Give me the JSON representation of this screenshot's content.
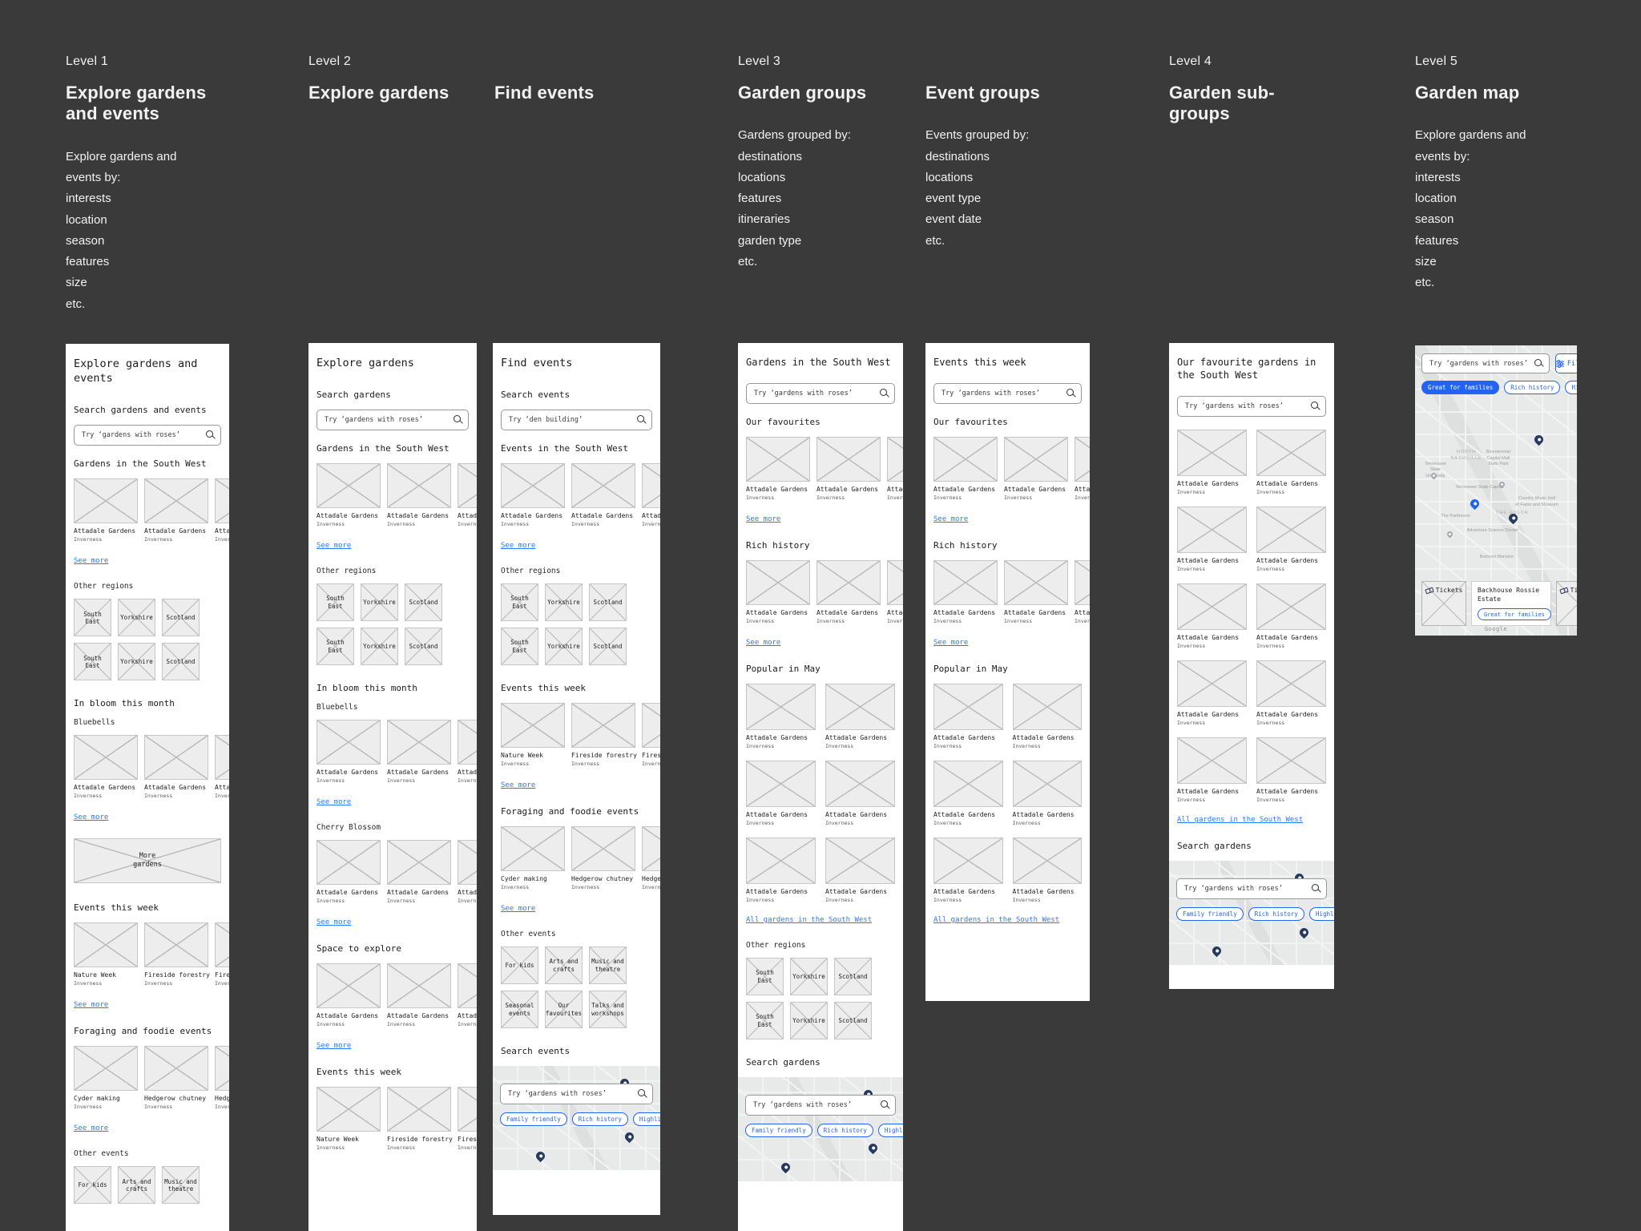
{
  "colors": {
    "background": "#3a3a3a",
    "link_blue": "#2979ff",
    "chip_blue": "#2264f0",
    "pin_navy": "#26395e",
    "pin_blue": "#2264f0"
  },
  "headers": [
    {
      "level": "Level 1",
      "title": "Explore gardens\nand events",
      "body": "Explore gardens and\nevents by:\ninterests\nlocation\nseason\nfeatures\nsize\netc."
    },
    {
      "level": "Level 2",
      "title": "Explore gardens",
      "body": ""
    },
    {
      "level": "",
      "title": "Find events",
      "body": ""
    },
    {
      "level": "Level 3",
      "title": "Garden groups",
      "body": "Gardens grouped by:\ndestinations\nlocations\nfeatures\nitineraries\ngarden type\netc."
    },
    {
      "level": "",
      "title": "Event groups",
      "body": "Events grouped by:\ndestinations\nlocations\nevent type\nevent date\netc."
    },
    {
      "level": "Level 4",
      "title": "Garden sub-\ngroups",
      "body": ""
    },
    {
      "level": "Level 5",
      "title": "Garden map",
      "body": "Explore gardens and\nevents by:\ninterests\nlocation\nseason\nfeatures\nsize\netc."
    }
  ],
  "screens": {
    "s1": {
      "name": "explore-gardens-and-events",
      "sections": [
        {
          "type": "title",
          "text": "Explore gardens and events"
        },
        {
          "type": "heading",
          "text": "Search gardens and events"
        },
        {
          "type": "search",
          "placeholder": "Try ‘gardens with roses’"
        },
        {
          "type": "heading",
          "text": "Gardens in the South West"
        },
        {
          "type": "cards",
          "items": [
            {
              "title": "Attadale Gardens",
              "subtitle": "Inverness"
            },
            {
              "title": "Attadale Gardens",
              "subtitle": "Inverness"
            },
            {
              "title": "Attadale Gardens",
              "subtitle": "Inverness"
            }
          ]
        },
        {
          "type": "link",
          "text": "See more"
        },
        {
          "type": "label",
          "text": "Other regions"
        },
        {
          "type": "tiles",
          "rows": [
            [
              "South East",
              "Yorkshire",
              "Scotland"
            ],
            [
              "South East",
              "Yorkshire",
              "Scotland"
            ]
          ]
        },
        {
          "type": "heading",
          "text": "In bloom this month"
        },
        {
          "type": "label",
          "text": "Bluebells"
        },
        {
          "type": "cards",
          "items": [
            {
              "title": "Attadale Gardens",
              "subtitle": "Inverness"
            },
            {
              "title": "Attadale Gardens",
              "subtitle": "Inverness"
            },
            {
              "title": "Attadale Gardens",
              "subtitle": "Inverness"
            }
          ]
        },
        {
          "type": "link",
          "text": "See more"
        },
        {
          "type": "banner",
          "text": "More\ngardens"
        },
        {
          "type": "heading",
          "text": "Events this week"
        },
        {
          "type": "cards",
          "items": [
            {
              "title": "Nature Week",
              "subtitle": "Inverness"
            },
            {
              "title": "Fireside forestry",
              "subtitle": "Inverness"
            },
            {
              "title": "Fireside forestry",
              "subtitle": "Inverness"
            }
          ]
        },
        {
          "type": "link",
          "text": "See more"
        },
        {
          "type": "heading",
          "text": "Foraging and foodie events"
        },
        {
          "type": "cards",
          "items": [
            {
              "title": "Cyder making",
              "subtitle": "Inverness"
            },
            {
              "title": "Hedgerow chutney",
              "subtitle": "Inverness"
            },
            {
              "title": "Hedgerow chutney",
              "subtitle": "Inverness"
            }
          ]
        },
        {
          "type": "link",
          "text": "See more"
        },
        {
          "type": "label",
          "text": "Other events"
        },
        {
          "type": "tiles",
          "rows": [
            [
              "For kids",
              "Arts and crafts",
              "Music and theatre"
            ]
          ]
        }
      ]
    },
    "s2": {
      "name": "explore-gardens",
      "sections": [
        {
          "type": "title",
          "text": "Explore gardens"
        },
        {
          "type": "heading",
          "text": "Search gardens"
        },
        {
          "type": "search",
          "placeholder": "Try ‘gardens with roses’"
        },
        {
          "type": "heading",
          "text": "Gardens in the South West"
        },
        {
          "type": "cards",
          "items": [
            {
              "title": "Attadale Gardens",
              "subtitle": "Inverness"
            },
            {
              "title": "Attadale Gardens",
              "subtitle": "Inverness"
            },
            {
              "title": "Attadale Gardens",
              "subtitle": "Inverness"
            }
          ]
        },
        {
          "type": "link",
          "text": "See more"
        },
        {
          "type": "label",
          "text": "Other regions"
        },
        {
          "type": "tiles",
          "rows": [
            [
              "South East",
              "Yorkshire",
              "Scotland"
            ],
            [
              "South East",
              "Yorkshire",
              "Scotland"
            ]
          ]
        },
        {
          "type": "heading",
          "text": "In bloom this month"
        },
        {
          "type": "label",
          "text": "Bluebells"
        },
        {
          "type": "cards",
          "items": [
            {
              "title": "Attadale Gardens",
              "subtitle": "Inverness"
            },
            {
              "title": "Attadale Gardens",
              "subtitle": "Inverness"
            },
            {
              "title": "Attadale Gardens",
              "subtitle": "Inverness"
            }
          ]
        },
        {
          "type": "link",
          "text": "See more"
        },
        {
          "type": "label",
          "text": "Cherry Blossom"
        },
        {
          "type": "cards",
          "items": [
            {
              "title": "Attadale Gardens",
              "subtitle": "Inverness"
            },
            {
              "title": "Attadale Gardens",
              "subtitle": "Inverness"
            },
            {
              "title": "Attadale Gardens",
              "subtitle": "Inverness"
            }
          ]
        },
        {
          "type": "link",
          "text": "See more"
        },
        {
          "type": "heading",
          "text": "Space to explore"
        },
        {
          "type": "cards",
          "items": [
            {
              "title": "Attadale Gardens",
              "subtitle": "Inverness"
            },
            {
              "title": "Attadale Gardens",
              "subtitle": "Inverness"
            },
            {
              "title": "Attadale Gardens",
              "subtitle": "Inverness"
            }
          ]
        },
        {
          "type": "link",
          "text": "See more"
        },
        {
          "type": "heading",
          "text": "Events this week"
        },
        {
          "type": "cards",
          "items": [
            {
              "title": "Nature Week",
              "subtitle": "Inverness"
            },
            {
              "title": "Fireside forestry",
              "subtitle": "Inverness"
            },
            {
              "title": "Fireside forestry",
              "subtitle": "Inverness"
            }
          ]
        }
      ]
    },
    "s3": {
      "name": "find-events",
      "sections": [
        {
          "type": "title",
          "text": "Find events"
        },
        {
          "type": "heading",
          "text": "Search events"
        },
        {
          "type": "search",
          "placeholder": "Try ‘den building’"
        },
        {
          "type": "heading",
          "text": "Events in the South West"
        },
        {
          "type": "cards",
          "items": [
            {
              "title": "Attadale Gardens",
              "subtitle": "Inverness"
            },
            {
              "title": "Attadale Gardens",
              "subtitle": "Inverness"
            },
            {
              "title": "Attadale Gardens",
              "subtitle": "Inverness"
            }
          ]
        },
        {
          "type": "link",
          "text": "See more"
        },
        {
          "type": "label",
          "text": "Other regions"
        },
        {
          "type": "tiles",
          "rows": [
            [
              "South East",
              "Yorkshire",
              "Scotland"
            ],
            [
              "South East",
              "Yorkshire",
              "Scotland"
            ]
          ]
        },
        {
          "type": "heading",
          "text": "Events this week"
        },
        {
          "type": "cards",
          "items": [
            {
              "title": "Nature Week",
              "subtitle": "Inverness"
            },
            {
              "title": "Fireside forestry",
              "subtitle": "Inverness"
            },
            {
              "title": "Fireside forestry",
              "subtitle": "Inverness"
            }
          ]
        },
        {
          "type": "link",
          "text": "See more"
        },
        {
          "type": "heading",
          "text": "Foraging and foodie events"
        },
        {
          "type": "cards",
          "items": [
            {
              "title": "Cyder making",
              "subtitle": "Inverness"
            },
            {
              "title": "Hedgerow chutney",
              "subtitle": "Inverness"
            },
            {
              "title": "Hedgerow chutney",
              "subtitle": "Inverness"
            }
          ]
        },
        {
          "type": "link",
          "text": "See more"
        },
        {
          "type": "label",
          "text": "Other events"
        },
        {
          "type": "tiles",
          "rows": [
            [
              "For kids",
              "Arts and crafts",
              "Music and theatre"
            ],
            [
              "Seasonal events",
              "Our favourites",
              "Talks and workshops"
            ]
          ]
        },
        {
          "type": "heading",
          "text": "Search events"
        },
        {
          "type": "map",
          "placeholder": "Try ‘gardens with roses’",
          "chips": [
            "Family friendly",
            "Rich history",
            "Highlights"
          ]
        }
      ]
    },
    "s4": {
      "name": "gardens-in-the-south-west",
      "sections": [
        {
          "type": "title-sm",
          "text": "Gardens in the South West"
        },
        {
          "type": "search",
          "placeholder": "Try ‘gardens with roses’"
        },
        {
          "type": "heading",
          "text": "Our favourites"
        },
        {
          "type": "cards",
          "items": [
            {
              "title": "Attadale Gardens",
              "subtitle": "Inverness"
            },
            {
              "title": "Attadale Gardens",
              "subtitle": "Inverness"
            },
            {
              "title": "Attadale Gardens",
              "subtitle": "Inverness"
            }
          ]
        },
        {
          "type": "link",
          "text": "See more"
        },
        {
          "type": "heading",
          "text": "Rich history"
        },
        {
          "type": "cards",
          "items": [
            {
              "title": "Attadale Gardens",
              "subtitle": "Inverness"
            },
            {
              "title": "Attadale Gardens",
              "subtitle": "Inverness"
            },
            {
              "title": "Attadale Gardens",
              "subtitle": "Inverness"
            }
          ]
        },
        {
          "type": "link",
          "text": "See more"
        },
        {
          "type": "heading",
          "text": "Popular in May"
        },
        {
          "type": "grid2",
          "items": [
            {
              "title": "Attadale Gardens",
              "subtitle": "Inverness"
            },
            {
              "title": "Attadale Gardens",
              "subtitle": "Inverness"
            },
            {
              "title": "Attadale Gardens",
              "subtitle": "Inverness"
            },
            {
              "title": "Attadale Gardens",
              "subtitle": "Inverness"
            },
            {
              "title": "Attadale Gardens",
              "subtitle": "Inverness"
            },
            {
              "title": "Attadale Gardens",
              "subtitle": "Inverness"
            }
          ]
        },
        {
          "type": "maplink",
          "text": "All gardens in the South West"
        },
        {
          "type": "label",
          "text": "Other regions"
        },
        {
          "type": "tiles",
          "rows": [
            [
              "South East",
              "Yorkshire",
              "Scotland"
            ],
            [
              "South East",
              "Yorkshire",
              "Scotland"
            ]
          ]
        },
        {
          "type": "heading",
          "text": "Search gardens"
        },
        {
          "type": "map",
          "placeholder": "Try ‘gardens with roses’",
          "chips": [
            "Family friendly",
            "Rich history",
            "Highlights"
          ]
        }
      ]
    },
    "s5": {
      "name": "events-this-week",
      "sections": [
        {
          "type": "title-sm",
          "text": "Events this week"
        },
        {
          "type": "search",
          "placeholder": "Try ‘gardens with roses’"
        },
        {
          "type": "heading",
          "text": "Our favourites"
        },
        {
          "type": "cards",
          "items": [
            {
              "title": "Attadale Gardens",
              "subtitle": "Inverness"
            },
            {
              "title": "Attadale Gardens",
              "subtitle": "Inverness"
            },
            {
              "title": "Attadale Gardens",
              "subtitle": "Inverness"
            }
          ]
        },
        {
          "type": "link",
          "text": "See more"
        },
        {
          "type": "heading",
          "text": "Rich history"
        },
        {
          "type": "cards",
          "items": [
            {
              "title": "Attadale Gardens",
              "subtitle": "Inverness"
            },
            {
              "title": "Attadale Gardens",
              "subtitle": "Inverness"
            },
            {
              "title": "Attadale Gardens",
              "subtitle": "Inverness"
            }
          ]
        },
        {
          "type": "link",
          "text": "See more"
        },
        {
          "type": "heading",
          "text": "Popular in May"
        },
        {
          "type": "grid2",
          "items": [
            {
              "title": "Attadale Gardens",
              "subtitle": "Inverness"
            },
            {
              "title": "Attadale Gardens",
              "subtitle": "Inverness"
            },
            {
              "title": "Attadale Gardens",
              "subtitle": "Inverness"
            },
            {
              "title": "Attadale Gardens",
              "subtitle": "Inverness"
            },
            {
              "title": "Attadale Gardens",
              "subtitle": "Inverness"
            },
            {
              "title": "Attadale Gardens",
              "subtitle": "Inverness"
            }
          ]
        },
        {
          "type": "maplink",
          "text": "All gardens in the South West"
        }
      ]
    },
    "s6": {
      "name": "our-favourite-gardens-in-the-south-west",
      "sections": [
        {
          "type": "title-sm",
          "text": "Our favourite gardens in the South West"
        },
        {
          "type": "search",
          "placeholder": "Try ‘gardens with roses’"
        },
        {
          "type": "grid2",
          "items": [
            {
              "title": "Attadale Gardens",
              "subtitle": "Inverness"
            },
            {
              "title": "Attadale Gardens",
              "subtitle": "Inverness"
            },
            {
              "title": "Attadale Gardens",
              "subtitle": "Inverness"
            },
            {
              "title": "Attadale Gardens",
              "subtitle": "Inverness"
            },
            {
              "title": "Attadale Gardens",
              "subtitle": "Inverness"
            },
            {
              "title": "Attadale Gardens",
              "subtitle": "Inverness"
            },
            {
              "title": "Attadale Gardens",
              "subtitle": "Inverness"
            },
            {
              "title": "Attadale Gardens",
              "subtitle": "Inverness"
            },
            {
              "title": "Attadale Gardens",
              "subtitle": "Inverness"
            },
            {
              "title": "Attadale Gardens",
              "subtitle": "Inverness"
            }
          ]
        },
        {
          "type": "maplink",
          "text": "All gardens in the South West"
        },
        {
          "type": "heading",
          "text": "Search gardens"
        },
        {
          "type": "map",
          "placeholder": "Try ‘gardens with roses’",
          "chips": [
            "Family friendly",
            "Rich history",
            "Highlights"
          ]
        }
      ]
    }
  },
  "map_screen": {
    "search_placeholder": "Try ‘gardens with roses’",
    "filters_label": "Filters",
    "chips": [
      {
        "label": "Great for families",
        "selected": true
      },
      {
        "label": "Rich history",
        "selected": false
      },
      {
        "label": "Highlights",
        "selected": false
      }
    ],
    "labels": [
      {
        "text": "NORTH\nNASHVILLE"
      },
      {
        "text": "Bicentennial\nCapitol Mall\nState Park"
      },
      {
        "text": "Tennessee\nState\nUniversity"
      },
      {
        "text": "Tennessee State Capitol"
      },
      {
        "text": "Country Music Hall\nof Fame and Museum"
      },
      {
        "text": "The Parthenon"
      },
      {
        "text": "THE GULCH"
      },
      {
        "text": "Adventure Science Center"
      },
      {
        "text": "Belmont Mansion"
      },
      {
        "text": "GREEN HILLS"
      }
    ],
    "google": "Google",
    "cards": {
      "ticket_label": "Tickets",
      "estate_name": "Backhouse Rossie Estate",
      "estate_chip": "Great for families",
      "ticket_label_2": "Tickets"
    }
  }
}
